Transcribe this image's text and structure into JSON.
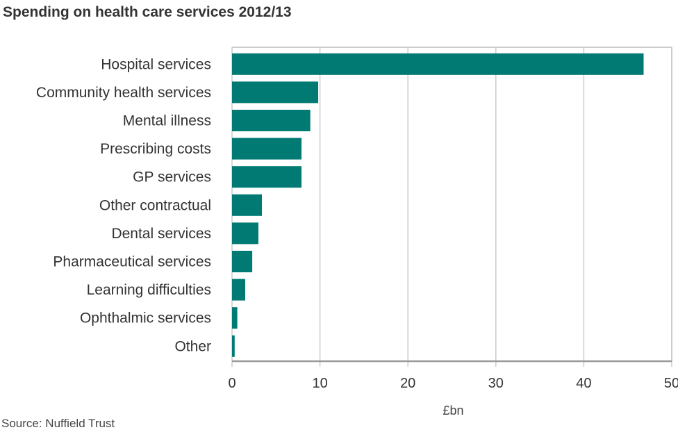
{
  "chart_data": {
    "type": "bar",
    "orientation": "horizontal",
    "title": "Spending on health care services 2012/13",
    "source": "Source: Nuffield Trust",
    "xlabel": "£bn",
    "ylabel": "",
    "categories": [
      "Hospital services",
      "Community health services",
      "Mental illness",
      "Prescribing costs",
      "GP services",
      "Other contractual",
      "Dental services",
      "Pharmaceutical services",
      "Learning difficulties",
      "Ophthalmic services",
      "Other"
    ],
    "values": [
      46.8,
      9.8,
      8.9,
      7.9,
      7.9,
      3.4,
      3.0,
      2.3,
      1.5,
      0.6,
      0.3
    ],
    "xlim": [
      0,
      50
    ],
    "xticks": [
      "0",
      "10",
      "20",
      "30",
      "40",
      "50"
    ],
    "grid": true,
    "bar_color": "#007a73",
    "grid_color": "#cccccc"
  }
}
